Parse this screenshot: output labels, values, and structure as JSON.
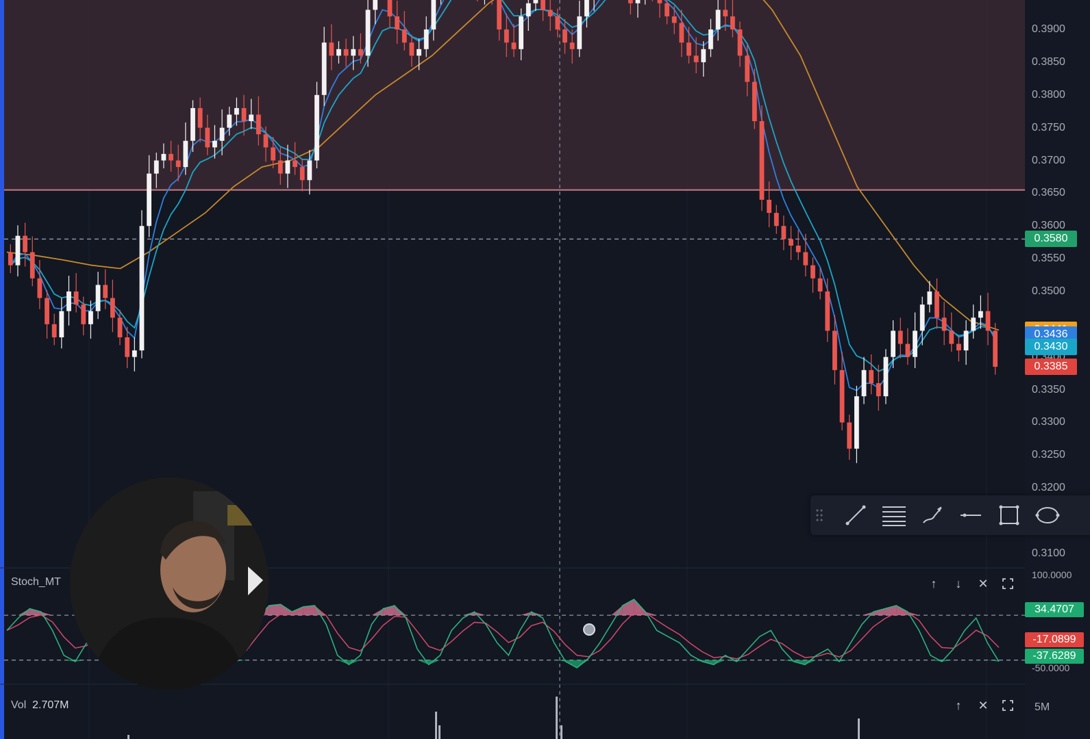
{
  "chart_data": [
    {
      "type": "candlestick",
      "panel": "price",
      "y_axis_ticks": [
        "0.3900",
        "0.3850",
        "0.3800",
        "0.3750",
        "0.3700",
        "0.3650",
        "0.3600",
        "0.3550",
        "0.3500",
        "0.3400",
        "0.3350",
        "0.3300",
        "0.3250",
        "0.3200",
        "0.3100"
      ],
      "ylim": [
        0.308,
        0.3945
      ],
      "price_markers": [
        {
          "label": "0.3580",
          "value": 0.358,
          "color": "#22a06b"
        },
        {
          "label": "0.3441",
          "value": 0.3441,
          "color": "#f0a020"
        },
        {
          "label": "0.3436",
          "value": 0.3436,
          "color": "#2f7fe0"
        },
        {
          "label": "0.3430",
          "value": 0.343,
          "color": "#1aa6c8"
        },
        {
          "label": "0.3385",
          "value": 0.3385,
          "color": "#e0443f"
        }
      ],
      "resistance_zone": {
        "from": 0.3655,
        "to": 0.3945,
        "color": "#3a2832"
      },
      "horizontal_line_value": 0.358,
      "close_series": [
        0.354,
        0.3585,
        0.356,
        0.352,
        0.349,
        0.345,
        0.343,
        0.347,
        0.35,
        0.348,
        0.345,
        0.347,
        0.351,
        0.349,
        0.346,
        0.343,
        0.34,
        0.341,
        0.36,
        0.368,
        0.37,
        0.371,
        0.37,
        0.369,
        0.373,
        0.378,
        0.375,
        0.372,
        0.373,
        0.375,
        0.377,
        0.378,
        0.376,
        0.377,
        0.374,
        0.372,
        0.37,
        0.368,
        0.37,
        0.369,
        0.367,
        0.37,
        0.38,
        0.388,
        0.386,
        0.387,
        0.386,
        0.387,
        0.386,
        0.393,
        0.396,
        0.397,
        0.392,
        0.39,
        0.388,
        0.386,
        0.387,
        0.39,
        0.396,
        0.398,
        0.4,
        0.402,
        0.4,
        0.398,
        0.396,
        0.398,
        0.395,
        0.39,
        0.388,
        0.387,
        0.392,
        0.394,
        0.395,
        0.393,
        0.392,
        0.39,
        0.388,
        0.387,
        0.392,
        0.395,
        0.396,
        0.398,
        0.4,
        0.398,
        0.396,
        0.394,
        0.395,
        0.397,
        0.396,
        0.394,
        0.392,
        0.391,
        0.388,
        0.386,
        0.385,
        0.387,
        0.39,
        0.393,
        0.392,
        0.39,
        0.386,
        0.382,
        0.376,
        0.364,
        0.362,
        0.36,
        0.358,
        0.357,
        0.356,
        0.354,
        0.352,
        0.35,
        0.344,
        0.338,
        0.33,
        0.326,
        0.334,
        0.338,
        0.336,
        0.334,
        0.34,
        0.344,
        0.342,
        0.34,
        0.344,
        0.348,
        0.35,
        0.346,
        0.344,
        0.342,
        0.341,
        0.344,
        0.346,
        0.347,
        0.344,
        0.3385
      ],
      "moving_averages": [
        {
          "color": "#c8892b",
          "close_series_step": [
            0.356,
            0.3555,
            0.3548,
            0.354,
            0.3535,
            0.356,
            0.359,
            0.362,
            0.366,
            0.369,
            0.37,
            0.372,
            0.376,
            0.38,
            0.383,
            0.386,
            0.39,
            0.394,
            0.397,
            0.4,
            0.403,
            0.405,
            0.406,
            0.405,
            0.404,
            0.401,
            0.398,
            0.393,
            0.386,
            0.376,
            0.366,
            0.36,
            0.354,
            0.349,
            0.3455,
            0.3441
          ]
        },
        {
          "color": "#2f7fe0",
          "type": "fast-ema"
        },
        {
          "color": "#1aa6c8",
          "type": "fast-ema"
        }
      ],
      "candle_colors": {
        "up": "#f2f2f2",
        "down": "#e9564f"
      }
    },
    {
      "type": "line",
      "panel": "stoch",
      "series": [
        {
          "name": "Stoch_MTF",
          "label": "34.4707",
          "value": 34.4707,
          "color": "#1faa72"
        },
        {
          "name": "",
          "label": "-17.0899",
          "value": -17.0899,
          "color": "#e0443f"
        },
        {
          "name": "",
          "label": "-37.6289",
          "value": -37.6289,
          "color": "#1faa72"
        }
      ],
      "y_axis_ticks": [
        "100.0000",
        "50.0000",
        "0.0000",
        "-50.0000"
      ],
      "levels": [
        34.4707,
        -37.6289
      ],
      "k_series": [
        10,
        30,
        45,
        40,
        10,
        -30,
        -40,
        -10,
        30,
        45,
        40,
        20,
        -30,
        -40,
        -20,
        10,
        30,
        20,
        -10,
        -30,
        -40,
        -20,
        30,
        50,
        52,
        40,
        48,
        50,
        20,
        -30,
        -45,
        -30,
        20,
        45,
        50,
        30,
        -20,
        -45,
        -30,
        10,
        30,
        40,
        20,
        -10,
        -30,
        10,
        40,
        30,
        -10,
        -40,
        -50,
        -35,
        -10,
        20,
        50,
        60,
        40,
        10,
        0,
        -10,
        -30,
        -40,
        -45,
        -30,
        -40,
        -20,
        0,
        10,
        -20,
        -40,
        -45,
        -30,
        -20,
        -40,
        -10,
        20,
        40,
        45,
        50,
        40,
        10,
        -30,
        -40,
        -20,
        10,
        30,
        -10,
        -40
      ]
    }
  ],
  "stoch_pane": {
    "label": "Stoch_MT",
    "buttons": [
      "arrow-up-icon",
      "arrow-down-icon",
      "close-icon",
      "maximize-icon"
    ]
  },
  "vol_pane": {
    "label": "Vol",
    "value": "2.707M",
    "axis_tick": "5M",
    "buttons": [
      "arrow-up-icon",
      "close-icon",
      "maximize-icon"
    ]
  },
  "drawing_toolbar": {
    "tools": [
      "drag-handle-icon",
      "trend-line-icon",
      "fib-retracement-icon",
      "brush-icon",
      "horizontal-line-icon",
      "rectangle-icon",
      "ellipse-icon"
    ]
  },
  "overlay": {
    "webcam": "presenter-webcam"
  }
}
